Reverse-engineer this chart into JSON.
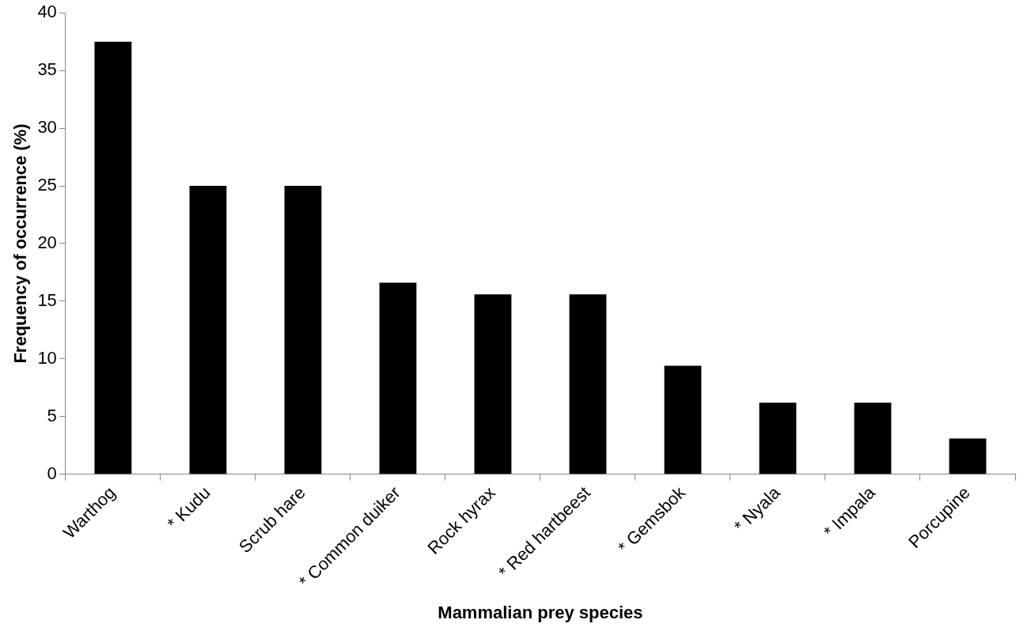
{
  "chart_data": {
    "type": "bar",
    "xlabel": "Mammalian prey species",
    "ylabel": "Frequency of occurrence (%)",
    "categories": [
      "Warthog",
      "* Kudu",
      "Scrub hare",
      "* Common duiker",
      "Rock hyrax",
      "* Red hartbeest",
      "* Gemsbok",
      "* Nyala",
      "* Impala",
      "Porcupine"
    ],
    "values": [
      37.5,
      25,
      25,
      16.6,
      15.6,
      15.6,
      9.4,
      6.2,
      6.2,
      3.1
    ],
    "color": "#000000",
    "ylim": [
      0,
      40
    ],
    "yticks": [
      0,
      5,
      10,
      15,
      20,
      25,
      30,
      35,
      40
    ],
    "grid": false,
    "legend": false
  }
}
